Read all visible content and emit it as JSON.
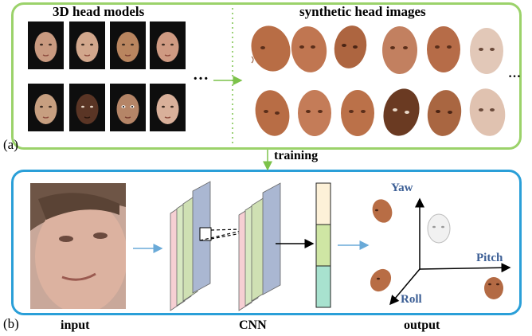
{
  "panel_a": {
    "label": "(a)",
    "left_title": "3D head models",
    "right_title": "synthetic head images",
    "left_ellipsis": "…",
    "right_ellipsis": "…",
    "skin_tones": [
      "#c99a80",
      "#d2a78c",
      "#b9855f",
      "#cf9a82",
      "#c79f80",
      "#5a3525",
      "#b58567",
      "#d9b09a"
    ],
    "synthetic_tone": "#b86d45"
  },
  "arrow_label": "training",
  "panel_b": {
    "label": "(b)",
    "input_label": "input",
    "cnn_label": "CNN",
    "output_label": "output",
    "axes": {
      "yaw": "Yaw",
      "pitch": "Pitch",
      "roll": "Roll"
    },
    "vector_colors": [
      "#fdf1d8",
      "#cfe6a4",
      "#a8e2cf"
    ]
  },
  "colors": {
    "panel_a_border": "#9bd26a",
    "panel_b_border": "#2a9fd8",
    "flow_arrow": "#6aaad8",
    "axis_text": "#3b5e95"
  }
}
